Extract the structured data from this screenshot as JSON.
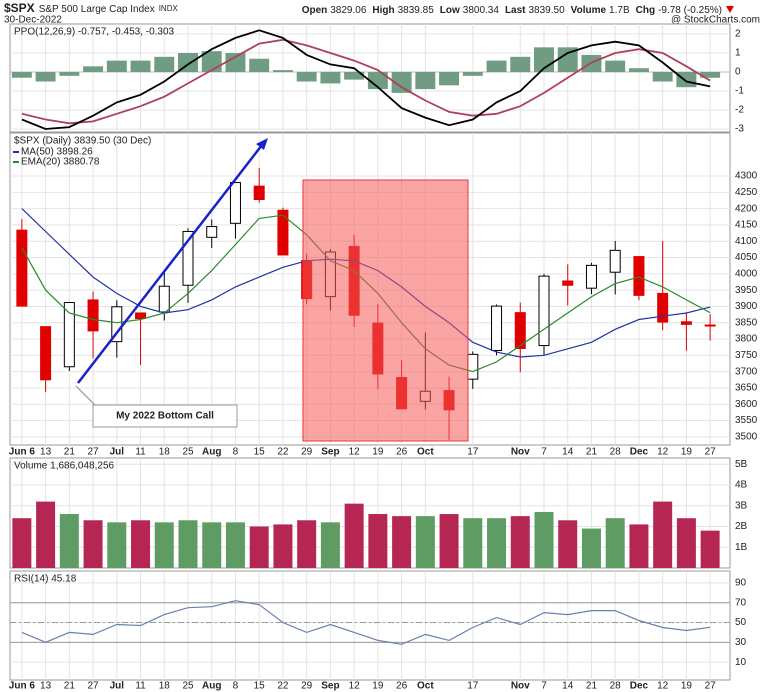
{
  "header": {
    "symbol": "$SPX",
    "name": "S&P 500 Large Cap Index",
    "exchange": "INDX",
    "date": "30-Dec-2022",
    "source": "@ StockCharts.com",
    "quote": [
      {
        "label": "Open",
        "value": "3829.06"
      },
      {
        "label": "High",
        "value": "3839.85"
      },
      {
        "label": "Low",
        "value": "3800.34"
      },
      {
        "label": "Last",
        "value": "3839.50"
      },
      {
        "label": "Volume",
        "value": "1.7B"
      },
      {
        "label": "Chg",
        "value": "-9.78 (-0.25%)"
      }
    ]
  },
  "chart_data": [
    {
      "type": "line",
      "label": "PPO(12,26,9) -0.757, -0.453, -0.303",
      "ylim": [
        -3.16,
        2.53
      ],
      "yticks": [
        -3,
        -2,
        -1,
        0,
        1,
        2
      ],
      "grid": true,
      "series": [
        {
          "name": "Histogram",
          "type": "bar",
          "color": "#6f9c82",
          "values": [
            -0.3,
            -0.5,
            -0.2,
            0.3,
            0.6,
            0.6,
            0.8,
            1.0,
            1.1,
            1.0,
            0.7,
            0.1,
            -0.5,
            -0.6,
            -0.4,
            -0.9,
            -1.1,
            -0.9,
            -0.7,
            -0.2,
            0.6,
            0.8,
            1.3,
            1.3,
            0.9,
            0.6,
            0.2,
            -0.5,
            -0.8,
            -0.303
          ]
        },
        {
          "name": "Signal",
          "color": "#b0405a",
          "values": [
            -2.2,
            -2.5,
            -2.7,
            -2.6,
            -2.2,
            -1.8,
            -1.3,
            -0.6,
            0.1,
            0.8,
            1.5,
            1.7,
            1.4,
            1.0,
            0.6,
            0.1,
            -0.8,
            -1.5,
            -2.1,
            -2.3,
            -2.2,
            -1.8,
            -1.1,
            -0.3,
            0.5,
            1.0,
            1.2,
            1.0,
            0.3,
            -0.453
          ]
        },
        {
          "name": "PPO",
          "color": "#000000",
          "values": [
            -2.5,
            -3.0,
            -2.9,
            -2.3,
            -1.6,
            -1.2,
            -0.5,
            0.4,
            1.2,
            1.8,
            2.2,
            1.8,
            0.9,
            0.4,
            0.2,
            -0.8,
            -1.9,
            -2.4,
            -2.8,
            -2.5,
            -1.6,
            -1.0,
            0.2,
            1.0,
            1.4,
            1.6,
            1.4,
            0.5,
            -0.5,
            -0.757
          ]
        }
      ]
    },
    {
      "type": "candlestick",
      "label": "$SPX (Daily) 3839.50 (30 Dec)",
      "categories": [
        "Jun 6",
        "13",
        "21",
        "27",
        "Jul",
        "11",
        "18",
        "25",
        "Aug",
        "8",
        "15",
        "22",
        "29",
        "Sep",
        "12",
        "19",
        "26",
        "Oct",
        null,
        "17",
        null,
        "Nov",
        "7",
        "14",
        "21",
        "28",
        "Dec",
        "12",
        "19",
        "27"
      ],
      "open": [
        4134,
        3838,
        3715,
        3920,
        3792,
        3880,
        3883,
        3965,
        4112,
        4155,
        4269,
        4195,
        4041,
        3930,
        4084,
        3849,
        3682,
        3609,
        3642,
        3677,
        3765,
        3881,
        3780,
        3978,
        3956,
        4005,
        4053,
        3940,
        3853,
        3843
      ],
      "high": [
        4168,
        3838,
        3913,
        3946,
        3919,
        3880,
        4013,
        4140,
        4167,
        4281,
        4325,
        4203,
        4062,
        4076,
        4119,
        3907,
        3736,
        3820,
        3685,
        3762,
        3906,
        3912,
        4000,
        4029,
        4034,
        4101,
        4053,
        4101,
        3880,
        3877
      ],
      "low": [
        3900,
        3637,
        3702,
        3741,
        3743,
        3721,
        3857,
        3911,
        4079,
        4108,
        4218,
        4057,
        3907,
        3887,
        3837,
        3647,
        3585,
        3584,
        3491,
        3647,
        3750,
        3698,
        3751,
        3903,
        3938,
        3937,
        3919,
        3827,
        3764,
        3795
      ],
      "close": [
        3901,
        3675,
        3912,
        3825,
        3899,
        3863,
        3962,
        4130,
        4145,
        4280,
        4228,
        4058,
        3924,
        4067,
        3873,
        3693,
        3586,
        3640,
        3583,
        3753,
        3901,
        3771,
        3993,
        3965,
        4026,
        4072,
        3934,
        3852,
        3845,
        3840
      ],
      "up_color": "#000000",
      "down_color": "#e00000",
      "ylim": [
        3475,
        4432
      ],
      "yticks": [
        3500,
        3550,
        3600,
        3650,
        3700,
        3750,
        3800,
        3850,
        3900,
        3950,
        4000,
        4050,
        4100,
        4150,
        4200,
        4250,
        4300
      ],
      "grid": true,
      "series": [
        {
          "name": "MA(50) 3898.26",
          "color": "#2233aa",
          "values": [
            4200,
            4130,
            4060,
            3990,
            3940,
            3900,
            3880,
            3890,
            3920,
            3960,
            3990,
            4020,
            4040,
            4045,
            4040,
            4010,
            3960,
            3900,
            3850,
            3790,
            3760,
            3745,
            3750,
            3770,
            3790,
            3830,
            3860,
            3870,
            3880,
            3898
          ]
        },
        {
          "name": "EMA(20) 3880.78",
          "color": "#2a8a2a",
          "values": [
            4080,
            3950,
            3880,
            3860,
            3850,
            3860,
            3880,
            3940,
            4010,
            4090,
            4170,
            4180,
            4120,
            4040,
            4010,
            3940,
            3850,
            3770,
            3720,
            3700,
            3730,
            3780,
            3830,
            3880,
            3930,
            3970,
            3990,
            3960,
            3920,
            3881
          ]
        }
      ],
      "annotations": [
        "My 2022 Bottom Call"
      ]
    },
    {
      "type": "bar",
      "label": "Volume 1,686,048,256",
      "up_color": "#5f9c64",
      "down_color": "#b52752",
      "ylim": [
        0,
        5.3
      ],
      "yticks": [
        {
          "value": 1,
          "label": "1B"
        },
        {
          "value": 2,
          "label": "2B"
        },
        {
          "value": 3,
          "label": "3B"
        },
        {
          "value": 4,
          "label": "4B"
        },
        {
          "value": 5,
          "label": "5B"
        }
      ],
      "grid": true,
      "values": [
        2.4,
        3.2,
        2.6,
        2.3,
        2.2,
        2.3,
        2.2,
        2.3,
        2.2,
        2.2,
        2.0,
        2.1,
        2.3,
        2.2,
        3.1,
        2.6,
        2.5,
        2.5,
        2.6,
        2.4,
        2.4,
        2.5,
        2.7,
        2.3,
        1.9,
        2.4,
        2.1,
        3.2,
        2.4,
        1.8
      ]
    },
    {
      "type": "line",
      "label": "RSI(14) 45.18",
      "ylim": [
        -8,
        102
      ],
      "yticks": [
        10,
        30,
        50,
        70,
        90
      ],
      "grid": true,
      "reference_lines": [
        30,
        70
      ],
      "midline": 50,
      "series": [
        {
          "name": "RSI",
          "color": "#6a7fb0",
          "values": [
            40,
            30,
            40,
            38,
            48,
            47,
            58,
            65,
            66,
            72,
            68,
            50,
            40,
            48,
            40,
            32,
            28,
            38,
            32,
            45,
            55,
            48,
            60,
            58,
            62,
            62,
            52,
            45,
            42,
            45.18
          ]
        }
      ]
    }
  ]
}
